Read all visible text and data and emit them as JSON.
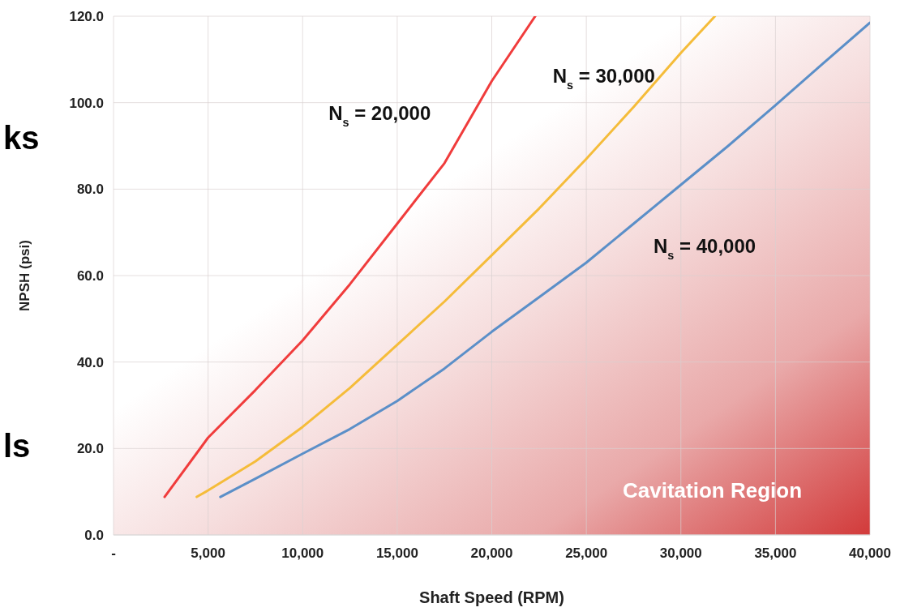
{
  "chart_data": {
    "type": "line",
    "xlabel": "Shaft Speed (RPM)",
    "ylabel": "NPSH (psi)",
    "xlim": [
      0,
      40000
    ],
    "xticks": [
      {
        "value": 0,
        "label": "-"
      },
      {
        "value": 5000,
        "label": "5,000"
      },
      {
        "value": 10000,
        "label": "10,000"
      },
      {
        "value": 15000,
        "label": "15,000"
      },
      {
        "value": 20000,
        "label": "20,000"
      },
      {
        "value": 25000,
        "label": "25,000"
      },
      {
        "value": 30000,
        "label": "30,000"
      },
      {
        "value": 35000,
        "label": "35,000"
      },
      {
        "value": 40000,
        "label": "40,000"
      }
    ],
    "ylim": [
      0,
      120
    ],
    "yticks": [
      {
        "value": 0,
        "label": "0.0"
      },
      {
        "value": 20,
        "label": "20.0"
      },
      {
        "value": 40,
        "label": "40.0"
      },
      {
        "value": 60,
        "label": "60.0"
      },
      {
        "value": 80,
        "label": "80.0"
      },
      {
        "value": 100,
        "label": "100.0"
      },
      {
        "value": 120,
        "label": "120.0"
      }
    ],
    "grid": true,
    "marker": "none",
    "line_style": "solid",
    "series": [
      {
        "name": "N$_{s}$ = 20,000",
        "color": "#f03c3c",
        "x": [
          2700,
          5000,
          7500,
          10000,
          12500,
          15000,
          17500,
          20000,
          22300
        ],
        "values": [
          8.8,
          22.5,
          33.5,
          45,
          58,
          72,
          86,
          105,
          120
        ]
      },
      {
        "name": "N$_{s}$ = 30,000",
        "color": "#f5bc3a",
        "x": [
          4400,
          5000,
          7500,
          10000,
          12500,
          15000,
          17500,
          20000,
          22500,
          25000,
          27500,
          30000,
          31800
        ],
        "values": [
          8.8,
          10.3,
          17,
          25,
          34,
          44,
          54,
          64.7,
          75.5,
          87,
          99,
          111.5,
          120
        ]
      },
      {
        "name": "N$_{s}$ = 40,000",
        "color": "#5b8fc8",
        "x": [
          5650,
          7500,
          10000,
          12500,
          15000,
          17500,
          20000,
          22500,
          25000,
          27500,
          30000,
          32500,
          35000,
          37500,
          40000
        ],
        "values": [
          8.8,
          13,
          18.8,
          24.5,
          31,
          38.5,
          47,
          55,
          63,
          72,
          81,
          90,
          99.4,
          109,
          118.5
        ]
      }
    ],
    "annotations": [
      "Cavitation Region",
      "ks",
      "ls"
    ]
  }
}
